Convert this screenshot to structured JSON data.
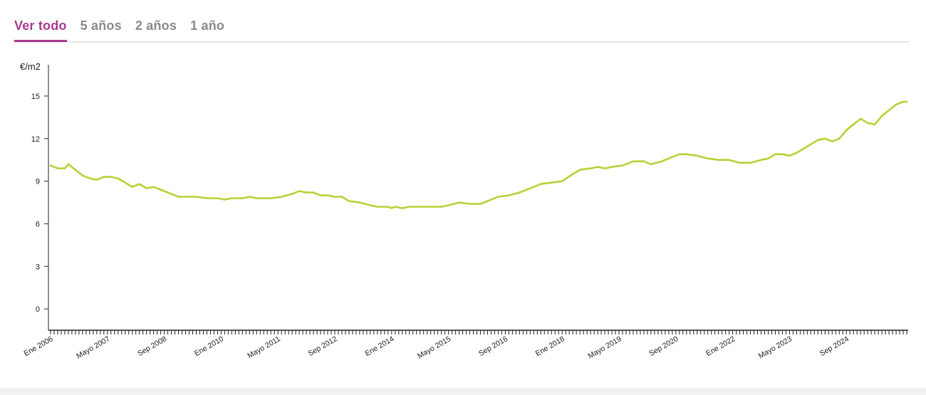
{
  "tabs": [
    {
      "label": "Ver todo",
      "active": true
    },
    {
      "label": "5 años",
      "active": false
    },
    {
      "label": "2 años",
      "active": false
    },
    {
      "label": "1 año",
      "active": false
    }
  ],
  "colors": {
    "accent": "#a83a8e",
    "tab_inactive": "#8a8a8a",
    "line": "#b3d335",
    "axis": "#222222"
  },
  "chart_data": {
    "type": "line",
    "title": "",
    "ylabel": "€/m2",
    "xlabel": "",
    "ylim": [
      -1.5,
      16.5
    ],
    "yticks": [
      0,
      3,
      6,
      9,
      12,
      15
    ],
    "grid": false,
    "legend": "none",
    "xticks": [
      {
        "label": "Ene 2006",
        "date": "2006-01"
      },
      {
        "label": "Mayo 2007",
        "date": "2007-05"
      },
      {
        "label": "Sep 2008",
        "date": "2008-09"
      },
      {
        "label": "Ene 2010",
        "date": "2010-01"
      },
      {
        "label": "Mayo 2011",
        "date": "2011-05"
      },
      {
        "label": "Sep 2012",
        "date": "2012-09"
      },
      {
        "label": "Ene 2014",
        "date": "2014-01"
      },
      {
        "label": "Mayo 2015",
        "date": "2015-05"
      },
      {
        "label": "Sep 2016",
        "date": "2016-09"
      },
      {
        "label": "Ene 2018",
        "date": "2018-01"
      },
      {
        "label": "Mayo 2019",
        "date": "2019-05"
      },
      {
        "label": "Sep 2020",
        "date": "2020-09"
      },
      {
        "label": "Ene 2022",
        "date": "2022-01"
      },
      {
        "label": "Mayo 2023",
        "date": "2023-05"
      },
      {
        "label": "Sep 2024",
        "date": "2024-09"
      }
    ],
    "series": [
      {
        "points": [
          [
            "2006-01",
            10.1
          ],
          [
            "2006-03",
            9.9
          ],
          [
            "2006-05",
            9.9
          ],
          [
            "2006-06",
            10.2
          ],
          [
            "2006-08",
            9.8
          ],
          [
            "2006-10",
            9.4
          ],
          [
            "2006-12",
            9.2
          ],
          [
            "2007-02",
            9.1
          ],
          [
            "2007-04",
            9.3
          ],
          [
            "2007-06",
            9.3
          ],
          [
            "2007-08",
            9.2
          ],
          [
            "2007-10",
            8.9
          ],
          [
            "2007-12",
            8.6
          ],
          [
            "2008-02",
            8.8
          ],
          [
            "2008-04",
            8.5
          ],
          [
            "2008-06",
            8.6
          ],
          [
            "2008-08",
            8.4
          ],
          [
            "2008-10",
            8.2
          ],
          [
            "2009-01",
            7.9
          ],
          [
            "2009-06",
            7.9
          ],
          [
            "2009-09",
            7.8
          ],
          [
            "2009-12",
            7.8
          ],
          [
            "2010-02",
            7.7
          ],
          [
            "2010-04",
            7.8
          ],
          [
            "2010-07",
            7.8
          ],
          [
            "2010-09",
            7.9
          ],
          [
            "2010-11",
            7.8
          ],
          [
            "2011-03",
            7.8
          ],
          [
            "2011-06",
            7.9
          ],
          [
            "2011-09",
            8.1
          ],
          [
            "2011-11",
            8.3
          ],
          [
            "2012-01",
            8.2
          ],
          [
            "2012-03",
            8.2
          ],
          [
            "2012-05",
            8.0
          ],
          [
            "2012-07",
            8.0
          ],
          [
            "2012-09",
            7.9
          ],
          [
            "2012-11",
            7.9
          ],
          [
            "2013-01",
            7.6
          ],
          [
            "2013-04",
            7.5
          ],
          [
            "2013-07",
            7.3
          ],
          [
            "2013-09",
            7.2
          ],
          [
            "2013-12",
            7.2
          ],
          [
            "2014-01",
            7.1
          ],
          [
            "2014-02",
            7.2
          ],
          [
            "2014-04",
            7.1
          ],
          [
            "2014-06",
            7.2
          ],
          [
            "2014-10",
            7.2
          ],
          [
            "2015-03",
            7.2
          ],
          [
            "2015-05",
            7.3
          ],
          [
            "2015-08",
            7.5
          ],
          [
            "2015-11",
            7.4
          ],
          [
            "2016-02",
            7.4
          ],
          [
            "2016-05",
            7.7
          ],
          [
            "2016-07",
            7.9
          ],
          [
            "2016-10",
            8.0
          ],
          [
            "2017-01",
            8.2
          ],
          [
            "2017-04",
            8.5
          ],
          [
            "2017-07",
            8.8
          ],
          [
            "2017-10",
            8.9
          ],
          [
            "2018-01",
            9.0
          ],
          [
            "2018-04",
            9.5
          ],
          [
            "2018-06",
            9.8
          ],
          [
            "2018-09",
            9.9
          ],
          [
            "2018-11",
            10.0
          ],
          [
            "2019-01",
            9.9
          ],
          [
            "2019-03",
            10.0
          ],
          [
            "2019-06",
            10.1
          ],
          [
            "2019-09",
            10.4
          ],
          [
            "2019-12",
            10.4
          ],
          [
            "2020-02",
            10.2
          ],
          [
            "2020-05",
            10.4
          ],
          [
            "2020-07",
            10.6
          ],
          [
            "2020-10",
            10.9
          ],
          [
            "2020-12",
            10.9
          ],
          [
            "2021-03",
            10.8
          ],
          [
            "2021-06",
            10.6
          ],
          [
            "2021-09",
            10.5
          ],
          [
            "2021-12",
            10.5
          ],
          [
            "2022-03",
            10.3
          ],
          [
            "2022-06",
            10.3
          ],
          [
            "2022-09",
            10.5
          ],
          [
            "2022-11",
            10.6
          ],
          [
            "2023-01",
            10.9
          ],
          [
            "2023-03",
            10.9
          ],
          [
            "2023-05",
            10.8
          ],
          [
            "2023-07",
            11.0
          ],
          [
            "2023-09",
            11.3
          ],
          [
            "2023-11",
            11.6
          ],
          [
            "2024-01",
            11.9
          ],
          [
            "2024-03",
            12.0
          ],
          [
            "2024-05",
            11.8
          ],
          [
            "2024-07",
            12.0
          ],
          [
            "2024-09",
            12.6
          ],
          [
            "2024-11",
            13.0
          ],
          [
            "2025-01",
            13.4
          ],
          [
            "2025-03",
            13.1
          ],
          [
            "2025-05",
            13.0
          ],
          [
            "2025-07",
            13.6
          ],
          [
            "2025-09",
            14.0
          ],
          [
            "2025-11",
            14.4
          ],
          [
            "2026-01",
            14.6
          ],
          [
            "2026-02",
            14.6
          ]
        ]
      }
    ]
  }
}
